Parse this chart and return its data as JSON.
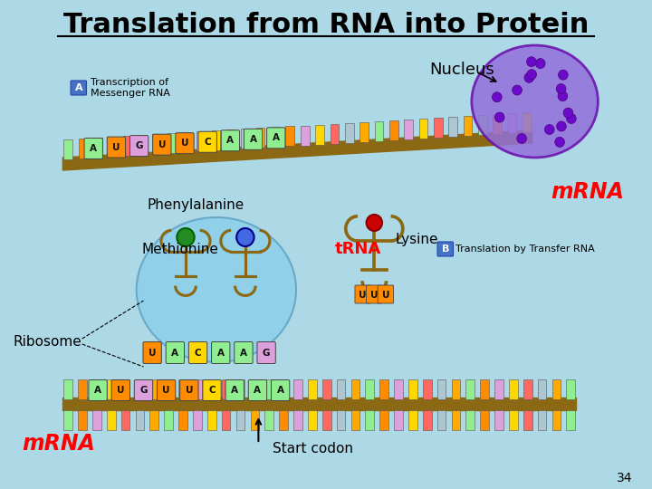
{
  "title": "Translation from RNA into Protein",
  "background_color": "#add8e6",
  "title_color": "#000000",
  "title_fontsize": 22,
  "labels": {
    "nucleus": "Nucleus",
    "transcription": "Transcription of\nMessenger RNA",
    "transcription_label": "A",
    "phenylalanine": "Phenylalanine",
    "methionine": "Methionine",
    "trna": "tRNA",
    "lysine": "Lysine",
    "mrna_right": "mRNA",
    "translation_label": "B",
    "translation_text": "Translation by Transfer RNA",
    "ribosome": "Ribosome",
    "mrna_left": "mRNA",
    "start_codon": "Start codon",
    "page_num": "34"
  },
  "upper_strand_bases": [
    "A",
    "U",
    "G",
    "U",
    "U",
    "C",
    "A",
    "A",
    "A"
  ],
  "lower_strand_bases": [
    "A",
    "U",
    "G",
    "U",
    "U",
    "C",
    "A",
    "A",
    "A"
  ],
  "ribosome_bases": [
    "U",
    "A",
    "C",
    "A",
    "A",
    "G"
  ],
  "base_colors": {
    "A": "#90EE90",
    "U": "#FF8C00",
    "G": "#DDA0DD",
    "C": "#FFD700"
  },
  "strand_color": "#8B6914",
  "ribosome_color": "#87CEEB",
  "nucleus_color": "#9370DB",
  "trna_color": "#8B6914",
  "mrna_color": "#FF0000",
  "teeth_colors": [
    "#90EE90",
    "#FF8C00",
    "#DDA0DD",
    "#FFD700",
    "#FF6961",
    "#AEC6CF",
    "#FFAA00"
  ]
}
